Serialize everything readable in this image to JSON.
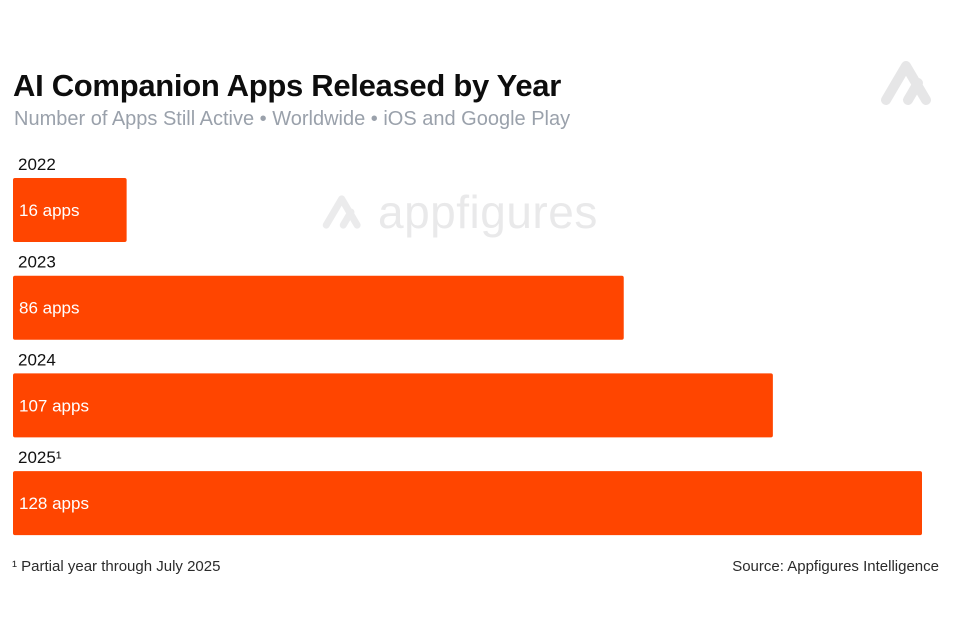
{
  "brand": {
    "logo_icon": "appfigures-logo-icon",
    "watermark_text": "appfigures",
    "accent_color": "#ff4500"
  },
  "chart_data": {
    "type": "bar",
    "orientation": "horizontal",
    "title": "AI Companion Apps Released by Year",
    "subtitle": "Number of Apps Still Active • Worldwide • iOS and Google Play",
    "categories": [
      "2022",
      "2023",
      "2024",
      "2025¹"
    ],
    "values": [
      16,
      86,
      107,
      128
    ],
    "data_labels": [
      "16 apps",
      "86 apps",
      "107 apps",
      "128 apps"
    ],
    "xlim": [
      0,
      130
    ],
    "grid": false,
    "bar_color": "#ff4500",
    "footnote": "¹ Partial year through July 2025",
    "source": "Source: Appfigures Intelligence"
  }
}
